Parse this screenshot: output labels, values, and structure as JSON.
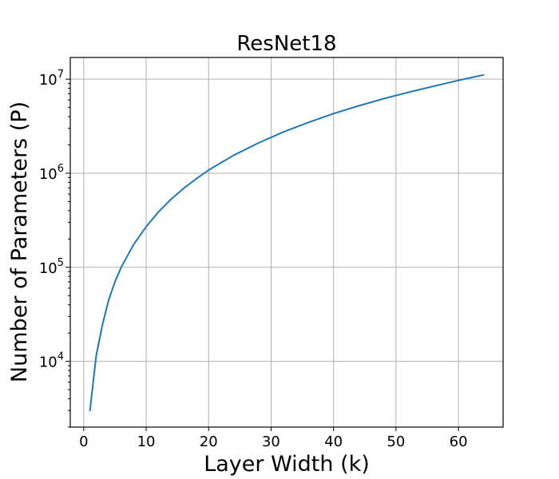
{
  "chart_data": {
    "type": "line",
    "title": "ResNet18",
    "xlabel": "Layer Width (k)",
    "ylabel": "Number of Parameters (P)",
    "xlim": [
      -2.15,
      67.15
    ],
    "ylim": [
      2000,
      17000000
    ],
    "yscale": "log",
    "grid": true,
    "xticks": [
      0,
      10,
      20,
      30,
      40,
      50,
      60
    ],
    "yticks": [
      {
        "value": 10000,
        "base": "10",
        "exp": "4"
      },
      {
        "value": 100000,
        "base": "10",
        "exp": "5"
      },
      {
        "value": 1000000,
        "base": "10",
        "exp": "6"
      },
      {
        "value": 10000000,
        "base": "10",
        "exp": "7"
      }
    ],
    "series": [
      {
        "color": "#1f77b4",
        "x": [
          1,
          2,
          3,
          4,
          5,
          6,
          8,
          10,
          12,
          14,
          16,
          18,
          20,
          24,
          28,
          32,
          36,
          40,
          44,
          48,
          52,
          56,
          60,
          64
        ],
        "y": [
          3000,
          11500,
          24500,
          45000,
          70000,
          100000,
          175000,
          270000,
          390000,
          530000,
          690000,
          870000,
          1080000,
          1550000,
          2100000,
          2750000,
          3470000,
          4300000,
          5200000,
          6200000,
          7250000,
          8400000,
          9700000,
          11100000
        ]
      }
    ]
  }
}
